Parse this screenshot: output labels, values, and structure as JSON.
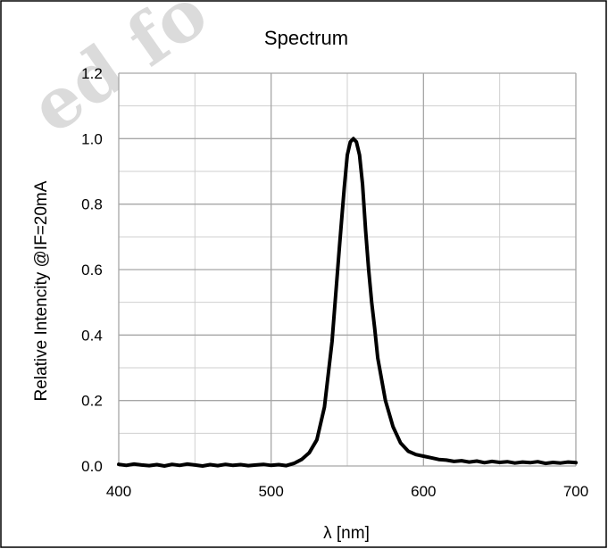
{
  "watermark": {
    "text": "ed fo"
  },
  "chart_data": {
    "type": "line",
    "title": "Spectrum",
    "xlabel": "λ [nm]",
    "ylabel": "Relative Intencity  @IF=20mA",
    "xlim": [
      400,
      700
    ],
    "ylim": [
      0.0,
      1.2
    ],
    "x_ticks": [
      400,
      500,
      600,
      700
    ],
    "x_tick_labels": [
      "400",
      "500",
      "600",
      "700"
    ],
    "y_ticks": [
      0.0,
      0.2,
      0.4,
      0.6,
      0.8,
      1.0,
      1.2
    ],
    "y_tick_labels": [
      "0.0",
      "0.2",
      "0.4",
      "0.6",
      "0.8",
      "1.0",
      "1.2"
    ],
    "grid": true,
    "legend": "none",
    "series": [
      {
        "color": "#000000",
        "x": [
          400,
          405,
          410,
          415,
          420,
          425,
          430,
          435,
          440,
          445,
          450,
          455,
          460,
          465,
          470,
          475,
          480,
          485,
          490,
          495,
          500,
          505,
          510,
          515,
          520,
          525,
          530,
          535,
          540,
          545,
          548,
          550,
          552,
          554,
          556,
          558,
          560,
          562,
          564,
          566,
          568,
          570,
          575,
          580,
          585,
          590,
          595,
          600,
          605,
          610,
          615,
          620,
          625,
          630,
          635,
          640,
          645,
          650,
          655,
          660,
          665,
          670,
          675,
          680,
          685,
          690,
          695,
          700
        ],
        "y": [
          0.005,
          0.002,
          0.006,
          0.003,
          0.001,
          0.004,
          0.0,
          0.005,
          0.002,
          0.006,
          0.003,
          0.0,
          0.004,
          0.001,
          0.005,
          0.002,
          0.004,
          0.001,
          0.003,
          0.005,
          0.002,
          0.004,
          0.001,
          0.008,
          0.02,
          0.04,
          0.08,
          0.18,
          0.38,
          0.68,
          0.85,
          0.95,
          0.99,
          1.0,
          0.99,
          0.95,
          0.86,
          0.72,
          0.6,
          0.5,
          0.42,
          0.33,
          0.2,
          0.12,
          0.07,
          0.045,
          0.035,
          0.03,
          0.025,
          0.02,
          0.018,
          0.014,
          0.016,
          0.012,
          0.015,
          0.01,
          0.014,
          0.011,
          0.013,
          0.009,
          0.012,
          0.01,
          0.013,
          0.008,
          0.011,
          0.009,
          0.012,
          0.01
        ]
      }
    ]
  }
}
